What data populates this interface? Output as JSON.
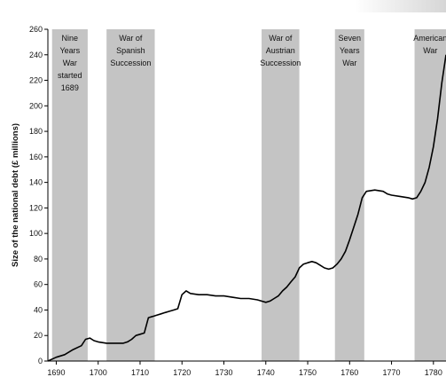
{
  "chart_data": {
    "type": "line",
    "title": "",
    "xlabel": "",
    "ylabel": "Size of the national debt (£ millions)",
    "xlim": [
      1688,
      1783
    ],
    "ylim": [
      0,
      260
    ],
    "xticks": [
      1690,
      1700,
      1710,
      1720,
      1730,
      1740,
      1750,
      1760,
      1770,
      1780
    ],
    "yticks": [
      0,
      20,
      40,
      60,
      80,
      100,
      120,
      140,
      160,
      180,
      200,
      220,
      240,
      260
    ],
    "grid": false,
    "legend": "none",
    "colors": {
      "line": "#000000",
      "band": "#c4c4c4",
      "axis": "#000000"
    },
    "bands": [
      {
        "x0": 1689,
        "x1": 1697.5,
        "label_lines": [
          "Nine",
          "Years",
          "War",
          "started",
          "1689"
        ]
      },
      {
        "x0": 1702,
        "x1": 1713.5,
        "label_lines": [
          "War of",
          "Spanish",
          "Succession"
        ]
      },
      {
        "x0": 1739,
        "x1": 1748,
        "label_lines": [
          "War of",
          "Austrian",
          "Succession"
        ]
      },
      {
        "x0": 1756.5,
        "x1": 1763.5,
        "label_lines": [
          "Seven",
          "Years",
          "War"
        ]
      },
      {
        "x0": 1775.5,
        "x1": 1783,
        "label_lines": [
          "American",
          "War"
        ]
      }
    ],
    "series": [
      {
        "x": [
          1688,
          1690,
          1692,
          1694,
          1696,
          1697,
          1698,
          1699,
          1700,
          1702,
          1704,
          1706,
          1707,
          1708,
          1709,
          1710,
          1711,
          1712,
          1713,
          1714,
          1715,
          1716,
          1717,
          1718,
          1719,
          1720,
          1721,
          1722,
          1724,
          1726,
          1728,
          1730,
          1732,
          1734,
          1736,
          1738,
          1739,
          1740,
          1741,
          1742,
          1743,
          1744,
          1745,
          1746,
          1747,
          1748,
          1749,
          1750,
          1751,
          1752,
          1753,
          1754,
          1755,
          1756,
          1757,
          1758,
          1759,
          1760,
          1761,
          1762,
          1763,
          1764,
          1766,
          1768,
          1769,
          1770,
          1772,
          1774,
          1775,
          1776,
          1777,
          1778,
          1779,
          1780,
          1781,
          1782,
          1783
        ],
        "y": [
          0,
          3,
          5,
          9,
          12,
          17,
          18,
          16,
          15,
          14,
          14,
          14,
          15,
          17,
          20,
          21,
          22,
          34,
          35,
          36,
          37,
          38,
          39,
          40,
          41,
          52,
          55,
          53,
          52,
          52,
          51,
          51,
          50,
          49,
          49,
          48,
          47,
          46,
          47,
          49,
          51,
          55,
          58,
          62,
          66,
          73,
          76,
          77,
          78,
          77,
          75,
          73,
          72,
          73,
          76,
          80,
          86,
          95,
          105,
          115,
          128,
          133,
          134,
          133,
          131,
          130,
          129,
          128,
          127,
          128,
          133,
          140,
          152,
          168,
          190,
          218,
          240
        ]
      }
    ]
  }
}
